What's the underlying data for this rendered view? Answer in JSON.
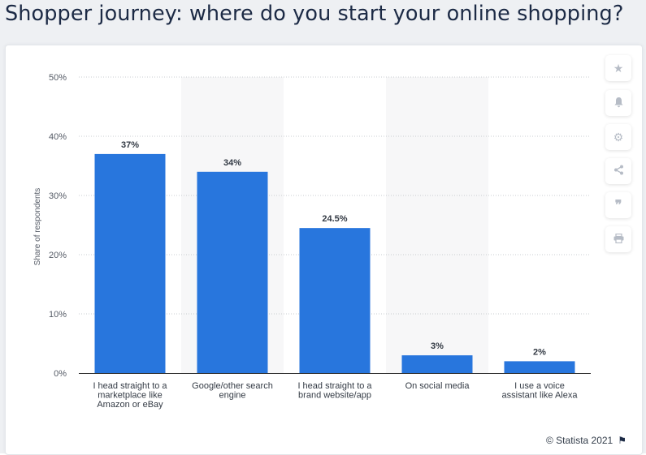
{
  "page": {
    "title": "Shopper journey: where do you start your online shopping?",
    "credit": "© Statista 2021"
  },
  "toolbar": {
    "icons": [
      "star-icon",
      "bell-icon",
      "gear-icon",
      "share-icon",
      "quote-icon",
      "print-icon"
    ]
  },
  "colors": {
    "bar": "#2876dd",
    "band": "#f7f7f8",
    "grid": "#c9ccd1",
    "axis": "#333333",
    "title": "#1c2a45"
  },
  "chart_data": {
    "type": "bar",
    "categories": [
      [
        "I head straight to a",
        "marketplace like",
        "Amazon or eBay"
      ],
      [
        "Google/other search",
        "engine"
      ],
      [
        "I head straight to a",
        "brand website/app"
      ],
      [
        "On social media"
      ],
      [
        "I use a voice",
        "assistant like Alexa"
      ]
    ],
    "values": [
      37,
      34,
      24.5,
      3,
      2
    ],
    "data_labels": [
      "37%",
      "34%",
      "24.5%",
      "3%",
      "2%"
    ],
    "ylabel": "Share of respondents",
    "ylim": [
      0,
      50
    ],
    "yticks": [
      0,
      10,
      20,
      30,
      40,
      50
    ],
    "ytick_labels": [
      "0%",
      "10%",
      "20%",
      "30%",
      "40%",
      "50%"
    ],
    "grid": "horizontal dotted",
    "alternate_bands": true
  }
}
